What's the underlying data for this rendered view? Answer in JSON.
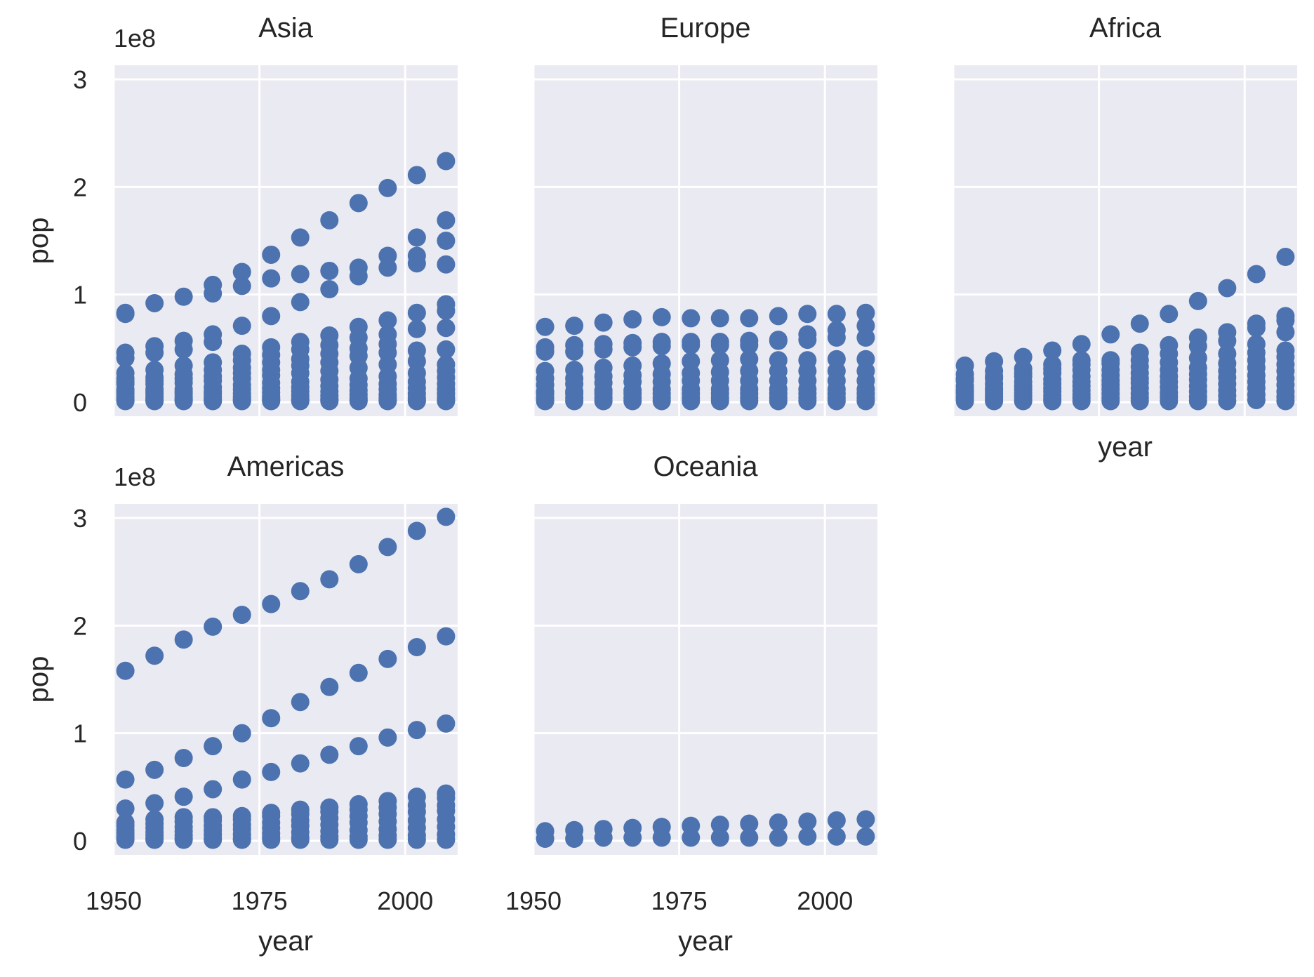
{
  "chart_data": {
    "type": "scatter",
    "layout": "facet-grid 3 columns",
    "xlabel": "year",
    "ylabel": "pop",
    "y_offset_label": "1e8",
    "xlim": [
      1950,
      2009
    ],
    "ylim": [
      -0.13,
      3.13
    ],
    "x_ticks": [
      1950,
      1975,
      2000
    ],
    "y_ticks": [
      0,
      1,
      2,
      3
    ],
    "grid": true,
    "marker_color": "#4c72b0",
    "background_color": "#eaeaf2",
    "years": [
      1952,
      1957,
      1962,
      1967,
      1972,
      1977,
      1982,
      1987,
      1992,
      1997,
      2002,
      2007
    ],
    "facets": [
      {
        "title": "Asia",
        "points_by_year": [
          [
            0.83,
            0.82,
            0.46,
            0.41,
            0.27,
            0.22,
            0.19,
            0.17,
            0.12,
            0.1,
            0.08,
            0.05,
            0.03,
            0.02,
            0.01
          ],
          [
            0.92,
            0.52,
            0.46,
            0.3,
            0.23,
            0.2,
            0.17,
            0.12,
            0.1,
            0.08,
            0.05,
            0.03,
            0.02,
            0.01
          ],
          [
            0.98,
            0.57,
            0.49,
            0.34,
            0.26,
            0.22,
            0.18,
            0.12,
            0.1,
            0.08,
            0.05,
            0.03,
            0.02,
            0.01
          ],
          [
            1.09,
            1.01,
            0.63,
            0.56,
            0.37,
            0.3,
            0.24,
            0.2,
            0.14,
            0.1,
            0.08,
            0.05,
            0.03,
            0.02,
            0.01
          ],
          [
            1.21,
            1.08,
            0.71,
            0.45,
            0.39,
            0.32,
            0.27,
            0.22,
            0.16,
            0.12,
            0.08,
            0.05,
            0.03,
            0.02,
            0.01
          ],
          [
            1.37,
            1.15,
            0.8,
            0.51,
            0.44,
            0.37,
            0.3,
            0.25,
            0.18,
            0.13,
            0.09,
            0.05,
            0.03,
            0.02,
            0.01
          ],
          [
            1.53,
            1.19,
            0.93,
            0.56,
            0.49,
            0.4,
            0.34,
            0.27,
            0.19,
            0.14,
            0.1,
            0.06,
            0.03,
            0.02,
            0.01
          ],
          [
            1.69,
            1.22,
            1.05,
            0.62,
            0.53,
            0.45,
            0.37,
            0.29,
            0.21,
            0.15,
            0.1,
            0.06,
            0.03,
            0.02,
            0.01
          ],
          [
            1.85,
            1.25,
            1.17,
            0.7,
            0.6,
            0.5,
            0.43,
            0.32,
            0.22,
            0.16,
            0.11,
            0.07,
            0.04,
            0.02,
            0.01
          ],
          [
            1.99,
            1.36,
            1.25,
            0.76,
            0.63,
            0.54,
            0.46,
            0.35,
            0.24,
            0.17,
            0.12,
            0.07,
            0.04,
            0.02,
            0.01
          ],
          [
            2.11,
            1.53,
            1.36,
            1.29,
            0.83,
            0.68,
            0.48,
            0.38,
            0.27,
            0.19,
            0.13,
            0.08,
            0.04,
            0.02,
            0.01
          ],
          [
            2.24,
            1.69,
            1.5,
            1.28,
            0.91,
            0.85,
            0.69,
            0.49,
            0.35,
            0.29,
            0.23,
            0.17,
            0.12,
            0.08,
            0.04,
            0.02,
            0.01
          ]
        ]
      },
      {
        "title": "Europe",
        "points_by_year": [
          [
            0.7,
            0.51,
            0.47,
            0.29,
            0.22,
            0.16,
            0.1,
            0.08,
            0.04,
            0.01
          ],
          [
            0.71,
            0.53,
            0.47,
            0.3,
            0.22,
            0.17,
            0.1,
            0.08,
            0.04,
            0.01
          ],
          [
            0.74,
            0.54,
            0.49,
            0.32,
            0.24,
            0.18,
            0.11,
            0.08,
            0.04,
            0.01
          ],
          [
            0.77,
            0.55,
            0.51,
            0.34,
            0.25,
            0.19,
            0.11,
            0.08,
            0.04,
            0.01
          ],
          [
            0.79,
            0.56,
            0.52,
            0.36,
            0.26,
            0.19,
            0.12,
            0.08,
            0.04,
            0.01
          ],
          [
            0.78,
            0.56,
            0.53,
            0.38,
            0.27,
            0.2,
            0.12,
            0.08,
            0.04,
            0.01
          ],
          [
            0.78,
            0.56,
            0.53,
            0.39,
            0.28,
            0.2,
            0.12,
            0.08,
            0.04,
            0.01
          ],
          [
            0.78,
            0.57,
            0.53,
            0.4,
            0.29,
            0.2,
            0.12,
            0.08,
            0.04,
            0.01
          ],
          [
            0.8,
            0.58,
            0.57,
            0.39,
            0.29,
            0.2,
            0.12,
            0.08,
            0.04,
            0.01
          ],
          [
            0.82,
            0.63,
            0.58,
            0.39,
            0.29,
            0.2,
            0.12,
            0.08,
            0.04,
            0.01
          ],
          [
            0.82,
            0.67,
            0.6,
            0.4,
            0.29,
            0.2,
            0.12,
            0.08,
            0.04,
            0.01
          ],
          [
            0.83,
            0.71,
            0.6,
            0.4,
            0.29,
            0.2,
            0.12,
            0.08,
            0.04,
            0.01
          ]
        ]
      },
      {
        "title": "Africa",
        "points_by_year": [
          [
            0.34,
            0.26,
            0.22,
            0.2,
            0.15,
            0.12,
            0.1,
            0.08,
            0.05,
            0.03,
            0.01
          ],
          [
            0.38,
            0.29,
            0.24,
            0.22,
            0.17,
            0.13,
            0.11,
            0.08,
            0.05,
            0.03,
            0.01
          ],
          [
            0.42,
            0.31,
            0.27,
            0.24,
            0.19,
            0.15,
            0.12,
            0.09,
            0.06,
            0.03,
            0.01
          ],
          [
            0.48,
            0.35,
            0.31,
            0.27,
            0.21,
            0.17,
            0.13,
            0.1,
            0.06,
            0.03,
            0.01
          ],
          [
            0.54,
            0.39,
            0.35,
            0.3,
            0.24,
            0.19,
            0.15,
            0.11,
            0.07,
            0.04,
            0.01
          ],
          [
            0.63,
            0.39,
            0.36,
            0.3,
            0.25,
            0.2,
            0.16,
            0.12,
            0.08,
            0.04,
            0.01
          ],
          [
            0.73,
            0.46,
            0.39,
            0.33,
            0.27,
            0.22,
            0.18,
            0.13,
            0.08,
            0.04,
            0.01
          ],
          [
            0.82,
            0.53,
            0.45,
            0.37,
            0.3,
            0.24,
            0.19,
            0.14,
            0.09,
            0.05,
            0.01
          ],
          [
            0.94,
            0.6,
            0.52,
            0.41,
            0.32,
            0.26,
            0.21,
            0.15,
            0.1,
            0.05,
            0.01
          ],
          [
            1.06,
            0.65,
            0.57,
            0.45,
            0.36,
            0.29,
            0.23,
            0.17,
            0.11,
            0.06,
            0.01
          ],
          [
            1.19,
            0.73,
            0.69,
            0.54,
            0.46,
            0.39,
            0.32,
            0.25,
            0.19,
            0.13,
            0.07,
            0.02
          ],
          [
            1.35,
            0.8,
            0.76,
            0.65,
            0.48,
            0.42,
            0.35,
            0.29,
            0.22,
            0.16,
            0.1,
            0.05,
            0.01
          ]
        ]
      },
      {
        "title": "Americas",
        "points_by_year": [
          [
            1.58,
            0.57,
            0.3,
            0.17,
            0.14,
            0.1,
            0.07,
            0.04,
            0.02,
            0.01
          ],
          [
            1.72,
            0.66,
            0.35,
            0.2,
            0.16,
            0.12,
            0.08,
            0.05,
            0.02,
            0.01
          ],
          [
            1.87,
            0.77,
            0.41,
            0.22,
            0.18,
            0.13,
            0.09,
            0.05,
            0.02,
            0.01
          ],
          [
            1.99,
            0.88,
            0.48,
            0.22,
            0.19,
            0.14,
            0.1,
            0.06,
            0.02,
            0.01
          ],
          [
            2.1,
            1.0,
            0.57,
            0.23,
            0.2,
            0.15,
            0.11,
            0.06,
            0.02,
            0.01
          ],
          [
            2.2,
            1.14,
            0.64,
            0.26,
            0.23,
            0.17,
            0.12,
            0.07,
            0.03,
            0.01
          ],
          [
            2.32,
            1.29,
            0.72,
            0.29,
            0.25,
            0.19,
            0.14,
            0.08,
            0.03,
            0.01
          ],
          [
            2.43,
            1.43,
            0.8,
            0.31,
            0.27,
            0.21,
            0.15,
            0.09,
            0.04,
            0.01
          ],
          [
            2.57,
            1.56,
            0.88,
            0.34,
            0.29,
            0.23,
            0.17,
            0.1,
            0.04,
            0.01
          ],
          [
            2.73,
            1.69,
            0.96,
            0.37,
            0.31,
            0.25,
            0.18,
            0.11,
            0.05,
            0.01
          ],
          [
            2.88,
            1.8,
            1.03,
            0.41,
            0.33,
            0.27,
            0.19,
            0.12,
            0.05,
            0.01
          ],
          [
            3.01,
            1.9,
            1.09,
            0.44,
            0.4,
            0.33,
            0.28,
            0.2,
            0.13,
            0.06,
            0.01
          ]
        ]
      },
      {
        "title": "Oceania",
        "points_by_year": [
          [
            0.09,
            0.02
          ],
          [
            0.1,
            0.02
          ],
          [
            0.11,
            0.03
          ],
          [
            0.12,
            0.03
          ],
          [
            0.13,
            0.03
          ],
          [
            0.14,
            0.03
          ],
          [
            0.15,
            0.03
          ],
          [
            0.16,
            0.03
          ],
          [
            0.17,
            0.03
          ],
          [
            0.18,
            0.04
          ],
          [
            0.19,
            0.04
          ],
          [
            0.2,
            0.04
          ]
        ]
      }
    ]
  }
}
